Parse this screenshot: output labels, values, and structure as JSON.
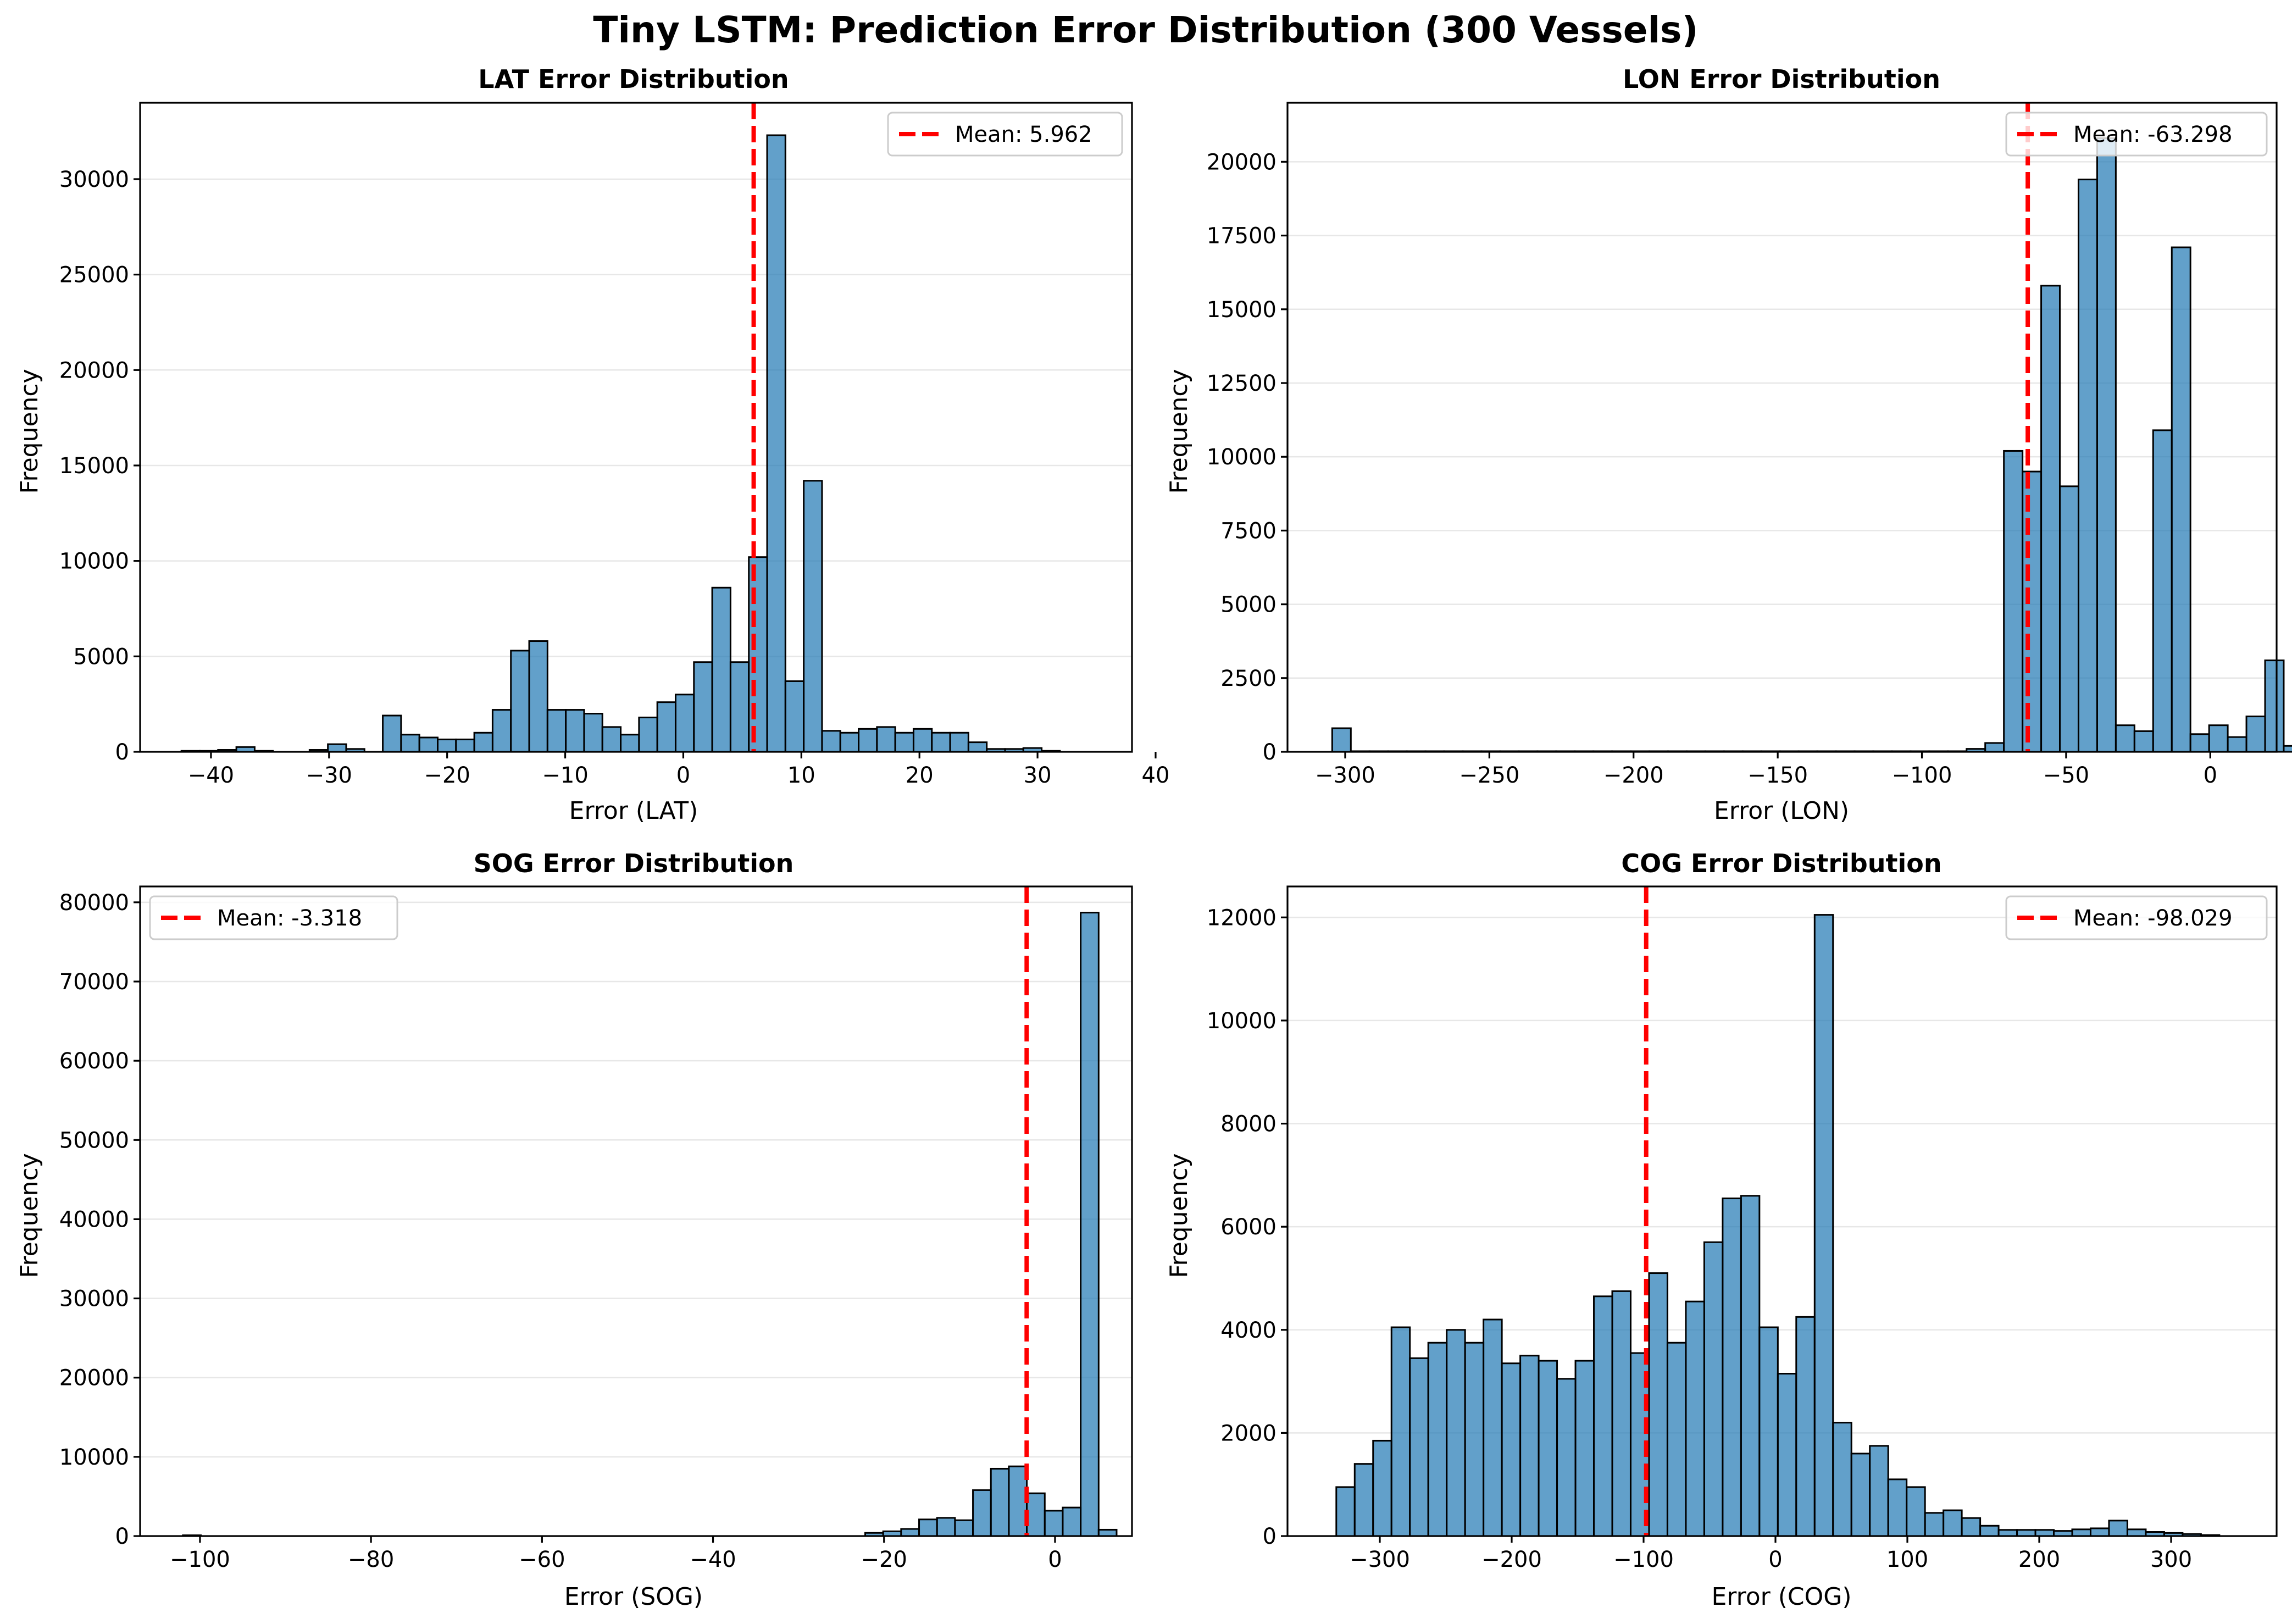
{
  "figure": {
    "title": "Tiny LSTM: Prediction Error Distribution (300 Vessels)"
  },
  "chart_data": [
    {
      "type": "bar",
      "title": "LAT Error Distribution",
      "xlabel": "Error (LAT)",
      "ylabel": "Frequency",
      "xlim": [
        -46,
        38
      ],
      "ylim": [
        0,
        34000
      ],
      "xticks": [
        -40,
        -30,
        -20,
        -10,
        0,
        10,
        20,
        30,
        40
      ],
      "yticks": [
        0,
        5000,
        10000,
        15000,
        20000,
        25000,
        30000
      ],
      "grid": "y",
      "bin_start": -42.5,
      "bin_width": 1.55,
      "values": [
        50,
        50,
        100,
        250,
        50,
        0,
        0,
        100,
        400,
        150,
        0,
        1900,
        900,
        750,
        650,
        650,
        1000,
        2200,
        5300,
        5800,
        2200,
        2200,
        2000,
        1300,
        900,
        1800,
        2600,
        3000,
        4700,
        8600,
        4700,
        10200,
        32300,
        3700,
        14200,
        1100,
        1000,
        1200,
        1300,
        1000,
        1200,
        1000,
        1000,
        500,
        150,
        150,
        200,
        50
      ],
      "mean_label": "Mean: 5.962",
      "mean_value": 5.962,
      "legend": "top-right",
      "color": "#1f77b4",
      "mean_color": "#ff0000"
    },
    {
      "type": "bar",
      "title": "LON Error Distribution",
      "xlabel": "Error (LON)",
      "ylabel": "Frequency",
      "xlim": [
        -320,
        23
      ],
      "ylim": [
        0,
        22000
      ],
      "xticks": [
        -300,
        -250,
        -200,
        -150,
        -100,
        -50,
        0
      ],
      "yticks": [
        0,
        2500,
        5000,
        7500,
        10000,
        12500,
        15000,
        17500,
        20000
      ],
      "grid": "y",
      "bin_start": -304.5,
      "bin_width": 6.47,
      "values": [
        800,
        20,
        20,
        20,
        20,
        20,
        20,
        20,
        20,
        20,
        20,
        20,
        20,
        20,
        20,
        20,
        20,
        20,
        20,
        20,
        20,
        20,
        20,
        20,
        20,
        20,
        20,
        20,
        20,
        20,
        20,
        20,
        20,
        20,
        100,
        300,
        10200,
        9500,
        15800,
        9000,
        19400,
        20800,
        900,
        700,
        10900,
        17100,
        600,
        900,
        500,
        1200,
        3100,
        200,
        100
      ],
      "mean_label": "Mean: -63.298",
      "mean_value": -63.298,
      "legend": "top-right",
      "color": "#1f77b4",
      "mean_color": "#ff0000"
    },
    {
      "type": "bar",
      "title": "SOG Error Distribution",
      "xlabel": "Error (SOG)",
      "ylabel": "Frequency",
      "xlim": [
        -107,
        9
      ],
      "ylim": [
        0,
        82000
      ],
      "xticks": [
        -100,
        -80,
        -60,
        -40,
        -20,
        0
      ],
      "yticks": [
        0,
        10000,
        20000,
        30000,
        40000,
        50000,
        60000,
        70000,
        80000
      ],
      "grid": "y",
      "bin_start": -102.0,
      "bin_width": 2.1,
      "values": [
        100,
        0,
        0,
        0,
        0,
        0,
        0,
        0,
        0,
        0,
        0,
        0,
        0,
        0,
        0,
        0,
        0,
        0,
        0,
        0,
        0,
        0,
        0,
        0,
        0,
        0,
        0,
        0,
        0,
        0,
        0,
        0,
        0,
        0,
        0,
        0,
        0,
        0,
        400,
        600,
        900,
        2100,
        2300,
        2000,
        5800,
        8500,
        8800,
        5400,
        3200,
        3600,
        78700,
        800
      ],
      "mean_label": "Mean: -3.318",
      "mean_value": -3.318,
      "legend": "top-left",
      "color": "#1f77b4",
      "mean_color": "#ff0000"
    },
    {
      "type": "bar",
      "title": "COG Error Distribution",
      "xlabel": "Error (COG)",
      "ylabel": "Frequency",
      "xlim": [
        -370,
        380
      ],
      "ylim": [
        0,
        12600
      ],
      "xticks": [
        -300,
        -200,
        -100,
        0,
        100,
        200,
        300
      ],
      "yticks": [
        0,
        2000,
        4000,
        6000,
        8000,
        10000,
        12000
      ],
      "grid": "y",
      "bin_start": -333.0,
      "bin_width": 13.95,
      "values": [
        950,
        1400,
        1850,
        4050,
        3450,
        3750,
        4000,
        3750,
        4200,
        3350,
        3500,
        3400,
        3050,
        3400,
        4650,
        4750,
        3550,
        5100,
        3750,
        4550,
        5700,
        6550,
        6600,
        4050,
        3150,
        4250,
        12050,
        2200,
        1600,
        1750,
        1100,
        950,
        450,
        500,
        350,
        200,
        120,
        120,
        120,
        100,
        130,
        150,
        300,
        130,
        80,
        60,
        40,
        20
      ],
      "mean_label": "Mean: -98.029",
      "mean_value": -98.029,
      "legend": "top-right",
      "color": "#1f77b4",
      "mean_color": "#ff0000"
    }
  ]
}
